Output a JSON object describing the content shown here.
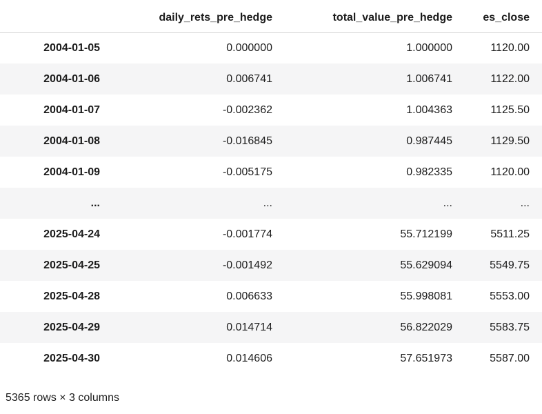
{
  "chart_data": {
    "type": "table",
    "title": "",
    "index_header": "",
    "columns": [
      "daily_rets_pre_hedge",
      "total_value_pre_hedge",
      "es_close"
    ],
    "rows": [
      {
        "index": "2004-01-05",
        "values": [
          "0.000000",
          "1.000000",
          "1120.00"
        ]
      },
      {
        "index": "2004-01-06",
        "values": [
          "0.006741",
          "1.006741",
          "1122.00"
        ]
      },
      {
        "index": "2004-01-07",
        "values": [
          "-0.002362",
          "1.004363",
          "1125.50"
        ]
      },
      {
        "index": "2004-01-08",
        "values": [
          "-0.016845",
          "0.987445",
          "1129.50"
        ]
      },
      {
        "index": "2004-01-09",
        "values": [
          "-0.005175",
          "0.982335",
          "1120.00"
        ]
      },
      {
        "index": "...",
        "values": [
          "...",
          "...",
          "..."
        ]
      },
      {
        "index": "2025-04-24",
        "values": [
          "-0.001774",
          "55.712199",
          "5511.25"
        ]
      },
      {
        "index": "2025-04-25",
        "values": [
          "-0.001492",
          "55.629094",
          "5549.75"
        ]
      },
      {
        "index": "2025-04-28",
        "values": [
          "0.006633",
          "55.998081",
          "5553.00"
        ]
      },
      {
        "index": "2025-04-29",
        "values": [
          "0.014714",
          "56.822029",
          "5583.75"
        ]
      },
      {
        "index": "2025-04-30",
        "values": [
          "0.014606",
          "57.651973",
          "5587.00"
        ]
      }
    ],
    "footer": "5365 rows × 3 columns"
  },
  "colors": {
    "text": "#1c1c1c",
    "row_stripe": "#f5f5f6",
    "header_border": "#d5d5d5",
    "background": "#ffffff"
  }
}
